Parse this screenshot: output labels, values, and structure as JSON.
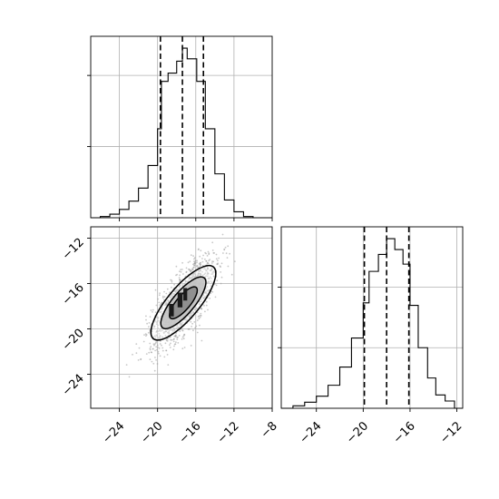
{
  "chart_data": {
    "type": "corner",
    "panels": [
      {
        "position": "top-left",
        "type": "histogram",
        "xlim": [
          -27,
          -8
        ],
        "xticks": [
          -24,
          -20,
          -16,
          -12,
          -8
        ],
        "grid": true,
        "bins": [
          [
            -27.0,
            -26.0,
            0
          ],
          [
            -26.0,
            -25.0,
            1
          ],
          [
            -25.0,
            -24.0,
            3
          ],
          [
            -24.0,
            -23.0,
            7
          ],
          [
            -23.0,
            -22.0,
            14
          ],
          [
            -22.0,
            -21.0,
            25
          ],
          [
            -21.0,
            -20.0,
            44
          ],
          [
            -20.0,
            -19.6,
            75
          ],
          [
            -19.6,
            -18.9,
            115
          ],
          [
            -18.9,
            -18.0,
            122
          ],
          [
            -18.0,
            -17.4,
            132
          ],
          [
            -17.4,
            -16.9,
            143
          ],
          [
            -16.9,
            -15.9,
            134
          ],
          [
            -15.9,
            -15.0,
            115
          ],
          [
            -15.0,
            -14.0,
            75
          ],
          [
            -14.0,
            -13.0,
            37
          ],
          [
            -13.0,
            -12.0,
            15
          ],
          [
            -12.0,
            -11.0,
            5
          ],
          [
            -11.0,
            -10.0,
            1
          ],
          [
            -10.0,
            -8.0,
            0
          ]
        ],
        "quantiles": [
          -19.7,
          -17.4,
          -15.2
        ]
      },
      {
        "position": "bottom-left",
        "type": "2d-density",
        "xlim": [
          -27,
          -8
        ],
        "ylim": [
          -27,
          -11
        ],
        "xticks": [
          -24,
          -20,
          -16,
          -12,
          -8
        ],
        "yticks": [
          -24,
          -20,
          -16,
          -12
        ],
        "grid": true,
        "center": [
          -17.3,
          -17.7
        ],
        "contour_levels": [
          {
            "sx": 4.9,
            "sy": 1.65,
            "angle": 50
          },
          {
            "sx": 3.4,
            "sy": 1.15,
            "angle": 50
          },
          {
            "sx": 2.1,
            "sy": 0.72,
            "angle": 50
          }
        ],
        "core_cells": [
          [
            -18.8,
            -18.9,
            -18.3,
            -17.8
          ],
          [
            -17.9,
            -18.1,
            -17.4,
            -16.8
          ],
          [
            -17.3,
            -17.5,
            -16.9,
            -16.4
          ]
        ],
        "sample_scatter": {
          "count": 1600,
          "sx": 2.3,
          "sy": 0.9,
          "angle": 50,
          "color": "#9a9a9a"
        }
      },
      {
        "position": "bottom-right",
        "type": "histogram",
        "xlim": [
          -27,
          -11.5
        ],
        "xticks": [
          -24,
          -20,
          -16,
          -12
        ],
        "grid": true,
        "bins": [
          [
            -27.0,
            -26.0,
            0
          ],
          [
            -26.0,
            -25.0,
            2
          ],
          [
            -25.0,
            -24.0,
            5
          ],
          [
            -24.0,
            -23.0,
            10
          ],
          [
            -23.0,
            -22.0,
            19
          ],
          [
            -22.0,
            -21.0,
            34
          ],
          [
            -21.0,
            -20.0,
            58
          ],
          [
            -20.0,
            -19.5,
            87
          ],
          [
            -19.5,
            -18.7,
            113
          ],
          [
            -18.7,
            -18.0,
            127
          ],
          [
            -18.0,
            -17.3,
            140
          ],
          [
            -17.3,
            -16.6,
            131
          ],
          [
            -16.6,
            -16.0,
            119
          ],
          [
            -16.0,
            -15.3,
            85
          ],
          [
            -15.3,
            -14.5,
            50
          ],
          [
            -14.5,
            -13.8,
            25
          ],
          [
            -13.8,
            -13.0,
            11
          ],
          [
            -13.0,
            -12.2,
            6
          ],
          [
            -12.2,
            -11.5,
            0
          ]
        ],
        "quantiles": [
          -19.9,
          -18.0,
          -16.1
        ]
      }
    ]
  }
}
